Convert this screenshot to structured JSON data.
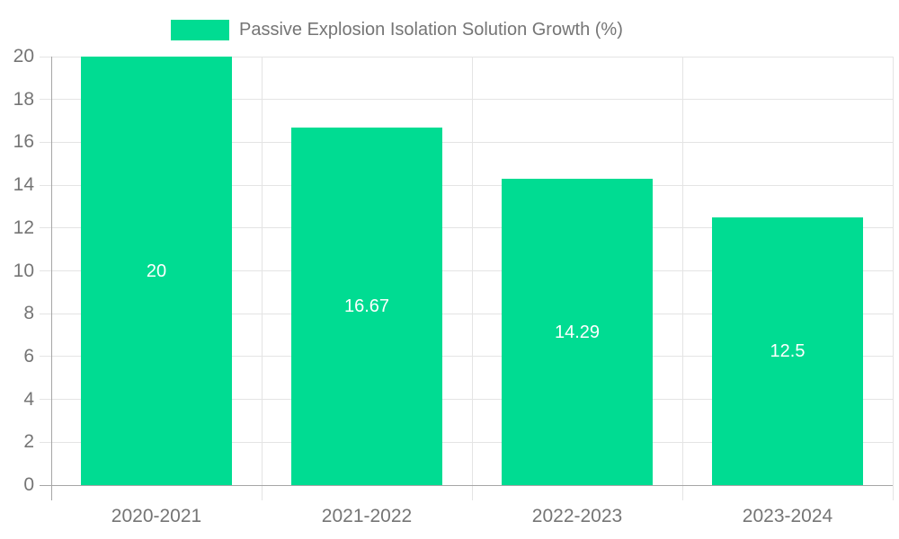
{
  "chart_data": {
    "type": "bar",
    "title": "Passive Explosion Isolation Solution Growth (%)",
    "legend": "Passive Explosion Isolation Solution Growth (%)",
    "legend_position": "top",
    "categories": [
      "2020-2021",
      "2021-2022",
      "2022-2023",
      "2023-2024"
    ],
    "values": [
      20,
      16.67,
      14.29,
      12.5
    ],
    "bar_labels": [
      "20",
      "16.67",
      "14.29",
      "12.5"
    ],
    "xlabel": "",
    "ylabel": "",
    "ylim": [
      0,
      20
    ],
    "ytick_step": 2,
    "grid": true,
    "colors": {
      "bar": "#00DC92",
      "bar_label_text": "#FFFFFF",
      "axis_label_text": "#757575",
      "legend_text": "#757575",
      "gridline": "#E4E4E4",
      "axis_line": "#A6A6A6",
      "background": "#FFFFFF"
    }
  }
}
